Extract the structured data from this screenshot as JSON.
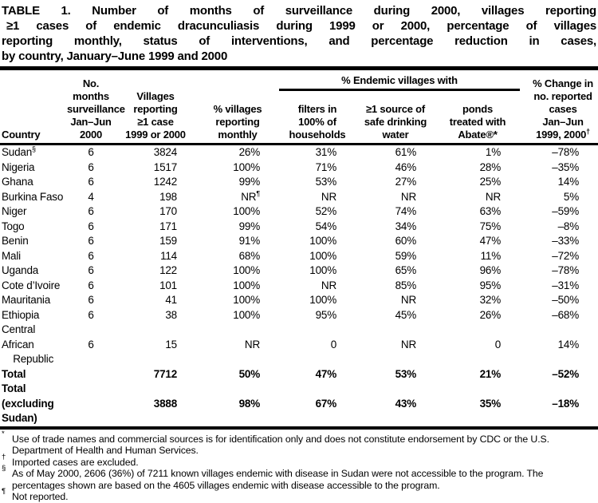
{
  "colors": {
    "text": "#000000",
    "background": "#ffffff",
    "rule": "#000000"
  },
  "title_lines": [
    "TABLE 1. Number of months of surveillance during 2000, villages reporting",
    "≥1 cases of endemic dracunculiasis during 1999 or 2000, percentage of villages",
    "reporting monthly, status of interventions, and percentage reduction in cases,",
    "by country, January–June 1999 and 2000"
  ],
  "header": {
    "country": "Country",
    "col_months": "No. months\nsurveillance\nJan–Jun\n2000",
    "col_villages": "Villages\nreporting\n≥1 case\n1999 or 2000",
    "col_pct_villages": "% villages\nreporting\nmonthly",
    "group": "% Endemic villages with",
    "col_filters": "filters in\n100% of\nhouseholds",
    "col_source": "≥1 source of\nsafe drinking\nwater",
    "col_ponds": "ponds\ntreated with\nAbate®*",
    "col_change": "% Change in\nno. reported\ncases\nJan–Jun\n1999, 2000",
    "col_change_sup": "†"
  },
  "rows": [
    {
      "country": "Sudan",
      "sup": "§",
      "c": [
        "6",
        "3824",
        "26%",
        "31%",
        "61%",
        "1%",
        "–78%"
      ]
    },
    {
      "country": "Nigeria",
      "c": [
        "6",
        "1517",
        "100%",
        "71%",
        "46%",
        "28%",
        "–35%"
      ]
    },
    {
      "country": "Ghana",
      "c": [
        "6",
        "1242",
        "99%",
        "53%",
        "27%",
        "25%",
        "14%"
      ]
    },
    {
      "country": "Burkina Faso",
      "c": [
        "4",
        "198",
        {
          "t": "NR",
          "sup": "¶"
        },
        "NR",
        "NR",
        "NR",
        "5%"
      ]
    },
    {
      "country": "Niger",
      "c": [
        "6",
        "170",
        "100%",
        "52%",
        "74%",
        "63%",
        "–59%"
      ]
    },
    {
      "country": "Togo",
      "c": [
        "6",
        "171",
        "99%",
        "54%",
        "34%",
        "75%",
        "–8%"
      ]
    },
    {
      "country": "Benin",
      "c": [
        "6",
        "159",
        "91%",
        "100%",
        "60%",
        "47%",
        "–33%"
      ]
    },
    {
      "country": "Mali",
      "c": [
        "6",
        "114",
        "68%",
        "100%",
        "59%",
        "11%",
        "–72%"
      ]
    },
    {
      "country": "Uganda",
      "c": [
        "6",
        "122",
        "100%",
        "100%",
        "65%",
        "96%",
        "–78%"
      ]
    },
    {
      "country": "Cote d’Ivoire",
      "c": [
        "6",
        "101",
        "100%",
        "NR",
        "85%",
        "95%",
        "–31%"
      ]
    },
    {
      "country": "Mauritania",
      "c": [
        "6",
        "41",
        "100%",
        "100%",
        "NR",
        "32%",
        "–50%"
      ]
    },
    {
      "country": "Ethiopia",
      "c": [
        "6",
        "38",
        "100%",
        "95%",
        "45%",
        "26%",
        "–68%"
      ]
    },
    {
      "country": "Central African\n    Republic",
      "c": [
        "6",
        "15",
        "NR",
        "0",
        "NR",
        "0",
        "14%"
      ]
    },
    {
      "country": "Total",
      "bold": true,
      "c": [
        "",
        "7712",
        "50%",
        "47%",
        "53%",
        "21%",
        "–52%"
      ]
    },
    {
      "country": "Total (excluding Sudan)",
      "bold": true,
      "c": [
        "",
        "3888",
        "98%",
        "67%",
        "43%",
        "35%",
        "–18%"
      ]
    }
  ],
  "footnotes": [
    {
      "marker": "*",
      "text": "Use of trade names and commercial sources is for identification only and does not constitute endorsement by CDC or the U.S. Department of Health and Human Services."
    },
    {
      "marker": "†",
      "text": "Imported cases are excluded."
    },
    {
      "marker": "§",
      "text": "As of May 2000, 2606 (36%) of 7211 known villages endemic with disease in Sudan were not accessible to the program. The percentages shown are based on the 4605 villages endemic with disease accessible to the program."
    },
    {
      "marker": "¶",
      "text": "Not reported."
    }
  ]
}
